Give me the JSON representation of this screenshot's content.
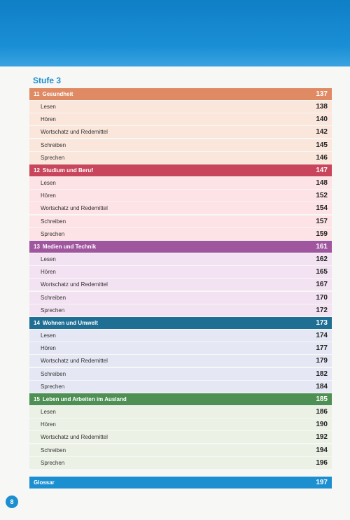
{
  "heading": "Stufe 3",
  "sections": [
    {
      "number": "11",
      "title": "Gesundheit",
      "page": 137,
      "color": "#e08a63",
      "bg": "#fbe6dc",
      "items": [
        {
          "label": "Lesen",
          "page": 138
        },
        {
          "label": "Hören",
          "page": 140
        },
        {
          "label": "Wortschatz und Redemittel",
          "page": 142
        },
        {
          "label": "Schreiben",
          "page": 145
        },
        {
          "label": "Sprechen",
          "page": 146
        }
      ]
    },
    {
      "number": "12",
      "title": "Studium und Beruf",
      "page": 147,
      "color": "#c8455b",
      "bg": "#fde2e6",
      "items": [
        {
          "label": "Lesen",
          "page": 148
        },
        {
          "label": "Hören",
          "page": 152
        },
        {
          "label": "Wortschatz und Redemittel",
          "page": 154
        },
        {
          "label": "Schreiben",
          "page": 157
        },
        {
          "label": "Sprechen",
          "page": 159
        }
      ]
    },
    {
      "number": "13",
      "title": "Medien und Technik",
      "page": 161,
      "color": "#a0569f",
      "bg": "#f3e2f1",
      "items": [
        {
          "label": "Lesen",
          "page": 162
        },
        {
          "label": "Hören",
          "page": 165
        },
        {
          "label": "Wortschatz und Redemittel",
          "page": 167
        },
        {
          "label": "Schreiben",
          "page": 170
        },
        {
          "label": "Sprechen",
          "page": 172
        }
      ]
    },
    {
      "number": "14",
      "title": "Wohnen und Umwelt",
      "page": 173,
      "color": "#1f6e93",
      "bg": "#e5e8f4",
      "items": [
        {
          "label": "Lesen",
          "page": 174
        },
        {
          "label": "Hören",
          "page": 177
        },
        {
          "label": "Wortschatz und Redemittel",
          "page": 179
        },
        {
          "label": "Schreiben",
          "page": 182
        },
        {
          "label": "Sprechen",
          "page": 184
        }
      ]
    },
    {
      "number": "15",
      "title": "Leben und Arbeiten im Ausland",
      "page": 185,
      "color": "#4e8f53",
      "bg": "#ecf1e5",
      "items": [
        {
          "label": "Lesen",
          "page": 186
        },
        {
          "label": "Hören",
          "page": 190
        },
        {
          "label": "Wortschatz und Redemittel",
          "page": 192
        },
        {
          "label": "Schreiben",
          "page": 194
        },
        {
          "label": "Sprechen",
          "page": 196
        }
      ]
    }
  ],
  "glossary": {
    "title": "Glossar",
    "page": 197,
    "color": "#1c8fd0"
  },
  "page_number": 8
}
